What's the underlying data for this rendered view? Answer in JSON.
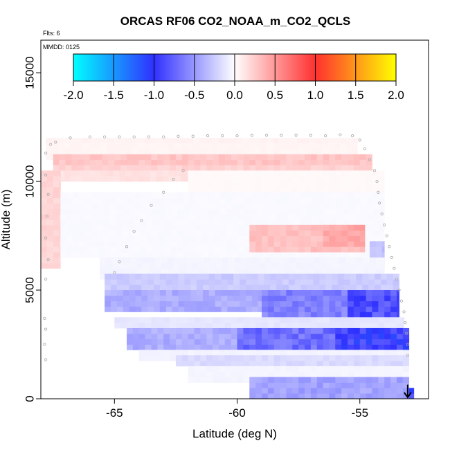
{
  "chart_data": {
    "type": "heatmap",
    "title": "ORCAS RF06 CO2_NOAA_m_CO2_QCLS",
    "annotations": [
      "Flts: 6",
      "MMDD: 0125"
    ],
    "xlabel": "Latitude (deg N)",
    "ylabel": "Altitude (m)",
    "xlim": [
      -68.0,
      -52.2
    ],
    "ylim": [
      0,
      16500
    ],
    "xticks": [
      -65,
      -60,
      -55
    ],
    "xtick_labels": [
      "-65",
      "-60",
      "-55"
    ],
    "yticks": [
      0,
      5000,
      10000,
      15000
    ],
    "ytick_labels": [
      "0",
      "5000",
      "10000",
      "15000"
    ],
    "grid": false,
    "colorbar": {
      "min": -2.0,
      "max": 2.0,
      "ticks": [
        -2.0,
        -1.5,
        -1.0,
        -0.5,
        0.0,
        0.5,
        1.0,
        1.5,
        2.0
      ],
      "tick_labels": [
        "-2.0",
        "-1.5",
        "-1.0",
        "-0.5",
        "0.0",
        "0.5",
        "1.0",
        "1.5",
        "2.0"
      ],
      "colors": [
        "#00ffff",
        "#3030ff",
        "#ffffff",
        "#ff3030",
        "#ffff00"
      ]
    },
    "cell_size": {
      "lat": 0.25,
      "alt": 250
    },
    "bands": [
      {
        "lat": [
          -67.8,
          -55.1
        ],
        "alt": [
          11750,
          12000
        ],
        "value": 0.06
      },
      {
        "lat": [
          -67.8,
          -55.1
        ],
        "alt": [
          11000,
          11750
        ],
        "value": 0.05
      },
      {
        "lat": [
          -67.5,
          -54.5
        ],
        "alt": [
          10750,
          11250
        ],
        "value": 0.28
      },
      {
        "lat": [
          -67.5,
          -54.5
        ],
        "alt": [
          10500,
          10750
        ],
        "value": 0.22
      },
      {
        "lat": [
          -67.8,
          -62.0
        ],
        "alt": [
          10000,
          10500
        ],
        "value": 0.14
      },
      {
        "lat": [
          -62.0,
          -54.0
        ],
        "alt": [
          9500,
          10500
        ],
        "value": 0.03
      },
      {
        "lat": [
          -68.0,
          -67.2
        ],
        "alt": [
          6000,
          10500
        ],
        "value": 0.2
      },
      {
        "lat": [
          -67.2,
          -54.0
        ],
        "alt": [
          6500,
          9500
        ],
        "value": -0.03
      },
      {
        "lat": [
          -59.5,
          -54.8
        ],
        "alt": [
          6750,
          8000
        ],
        "value": 0.3
      },
      {
        "lat": [
          -56.5,
          -54.8
        ],
        "alt": [
          7000,
          8000
        ],
        "value": 0.42
      },
      {
        "lat": [
          -54.6,
          -54.0
        ],
        "alt": [
          6000,
          7250
        ],
        "value": -0.3
      },
      {
        "lat": [
          -65.6,
          -54.0
        ],
        "alt": [
          5500,
          6500
        ],
        "value": -0.05
      },
      {
        "lat": [
          -65.4,
          -53.4
        ],
        "alt": [
          5000,
          5750
        ],
        "value": -0.25
      },
      {
        "lat": [
          -65.4,
          -53.4
        ],
        "alt": [
          4000,
          5000
        ],
        "value": -0.4
      },
      {
        "lat": [
          -59.0,
          -53.4
        ],
        "alt": [
          3750,
          5000
        ],
        "value": -0.6
      },
      {
        "lat": [
          -55.5,
          -53.4
        ],
        "alt": [
          3750,
          5000
        ],
        "value": -0.85
      },
      {
        "lat": [
          -65.0,
          -53.2
        ],
        "alt": [
          3250,
          3750
        ],
        "value": -0.12
      },
      {
        "lat": [
          -64.5,
          -53.0
        ],
        "alt": [
          2250,
          3250
        ],
        "value": -0.4
      },
      {
        "lat": [
          -60.0,
          -53.0
        ],
        "alt": [
          2250,
          3250
        ],
        "value": -0.7
      },
      {
        "lat": [
          -56.0,
          -53.0
        ],
        "alt": [
          2250,
          3250
        ],
        "value": -0.95
      },
      {
        "lat": [
          -64.0,
          -53.0
        ],
        "alt": [
          1750,
          2250
        ],
        "value": -0.06
      },
      {
        "lat": [
          -62.5,
          -53.0
        ],
        "alt": [
          1500,
          2000
        ],
        "value": -0.18
      },
      {
        "lat": [
          -62.0,
          -53.0
        ],
        "alt": [
          750,
          1500
        ],
        "value": -0.05
      },
      {
        "lat": [
          -59.5,
          -53.0
        ],
        "alt": [
          0,
          1000
        ],
        "value": -0.45
      },
      {
        "lat": [
          -53.0,
          -52.8
        ],
        "alt": [
          0,
          500
        ],
        "value": -0.95
      }
    ],
    "flight_track": [
      [
        -67.8,
        1800
      ],
      [
        -67.85,
        2500
      ],
      [
        -67.8,
        3200
      ],
      [
        -67.85,
        3700
      ],
      [
        -67.8,
        5500
      ],
      [
        -67.7,
        6400
      ],
      [
        -67.8,
        7400
      ],
      [
        -67.75,
        8400
      ],
      [
        -67.7,
        9400
      ],
      [
        -67.8,
        10300
      ],
      [
        -67.8,
        11300
      ],
      [
        -67.6,
        11700
      ],
      [
        -67.4,
        11800
      ],
      [
        -66.8,
        12000
      ],
      [
        -66.0,
        12050
      ],
      [
        -65.4,
        12050
      ],
      [
        -64.8,
        12050
      ],
      [
        -64.2,
        12050
      ],
      [
        -63.6,
        12050
      ],
      [
        -63.0,
        12050
      ],
      [
        -62.4,
        12080
      ],
      [
        -61.8,
        12080
      ],
      [
        -61.2,
        12100
      ],
      [
        -60.6,
        12100
      ],
      [
        -60.0,
        12100
      ],
      [
        -59.4,
        12120
      ],
      [
        -58.8,
        12120
      ],
      [
        -58.2,
        12120
      ],
      [
        -57.6,
        12120
      ],
      [
        -57.0,
        12120
      ],
      [
        -56.4,
        12100
      ],
      [
        -55.8,
        12150
      ],
      [
        -55.3,
        12100
      ],
      [
        -55.0,
        11900
      ],
      [
        -54.8,
        11500
      ],
      [
        -54.6,
        11000
      ],
      [
        -54.4,
        10500
      ],
      [
        -54.3,
        10000
      ],
      [
        -54.25,
        9500
      ],
      [
        -54.2,
        9000
      ],
      [
        -54.1,
        8500
      ],
      [
        -54.0,
        8000
      ],
      [
        -53.9,
        7500
      ],
      [
        -53.8,
        7000
      ],
      [
        -53.7,
        6500
      ],
      [
        -53.6,
        6000
      ],
      [
        -53.5,
        5500
      ],
      [
        -53.4,
        5000
      ],
      [
        -53.3,
        4500
      ],
      [
        -53.2,
        4000
      ],
      [
        -53.15,
        3500
      ],
      [
        -53.1,
        3000
      ],
      [
        -53.05,
        2500
      ],
      [
        -53.05,
        2000
      ],
      [
        -64.8,
        6300
      ],
      [
        -65.0,
        5800
      ],
      [
        -64.5,
        7000
      ],
      [
        -64.2,
        7700
      ],
      [
        -63.9,
        8200
      ],
      [
        -63.5,
        8900
      ],
      [
        -63.0,
        9500
      ],
      [
        -62.6,
        10100
      ],
      [
        -62.2,
        10500
      ]
    ],
    "end_marker": {
      "lat": -53.05,
      "alt": 650
    }
  }
}
